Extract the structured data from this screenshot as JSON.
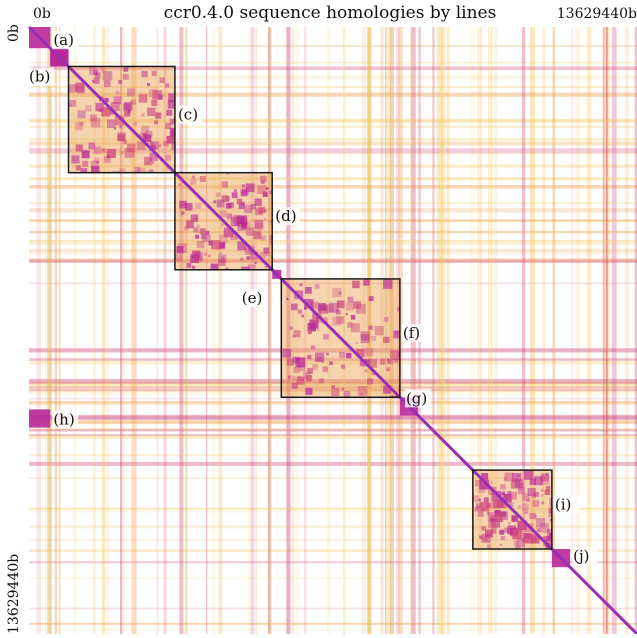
{
  "title": "ccr0.4.0 sequence homologies by lines",
  "axis": {
    "top_start": "0b",
    "top_end": "13629440b",
    "left_start": "0b",
    "left_end": "13629440b"
  },
  "colors": {
    "background": "#ffffff",
    "low_homology": "#f3cd68",
    "mid_homology": "#eaa050",
    "high_homology": "#cf4a7e",
    "block_homology": "#b8279a",
    "diagonal": "#9a2fb4",
    "box_outline": "#1a1a1a"
  },
  "regions": [
    {
      "label": "(a)",
      "start": 0.0,
      "end": 0.035,
      "boxed": false
    },
    {
      "label": "(b)",
      "start": 0.035,
      "end": 0.065,
      "boxed": false
    },
    {
      "label": "(c)",
      "start": 0.065,
      "end": 0.24,
      "boxed": true
    },
    {
      "label": "(d)",
      "start": 0.24,
      "end": 0.4,
      "boxed": true
    },
    {
      "label": "(e)",
      "start": 0.4,
      "end": 0.415,
      "boxed": false
    },
    {
      "label": "(f)",
      "start": 0.415,
      "end": 0.61,
      "boxed": true
    },
    {
      "label": "(g)",
      "start": 0.61,
      "end": 0.64,
      "boxed": false
    },
    {
      "label": "(h)",
      "start": 0.0,
      "end": 0.03,
      "boxed": false
    },
    {
      "label": "(i)",
      "start": 0.73,
      "end": 0.86,
      "boxed": true
    },
    {
      "label": "(j)",
      "start": 0.86,
      "end": 0.89,
      "boxed": false
    }
  ]
}
